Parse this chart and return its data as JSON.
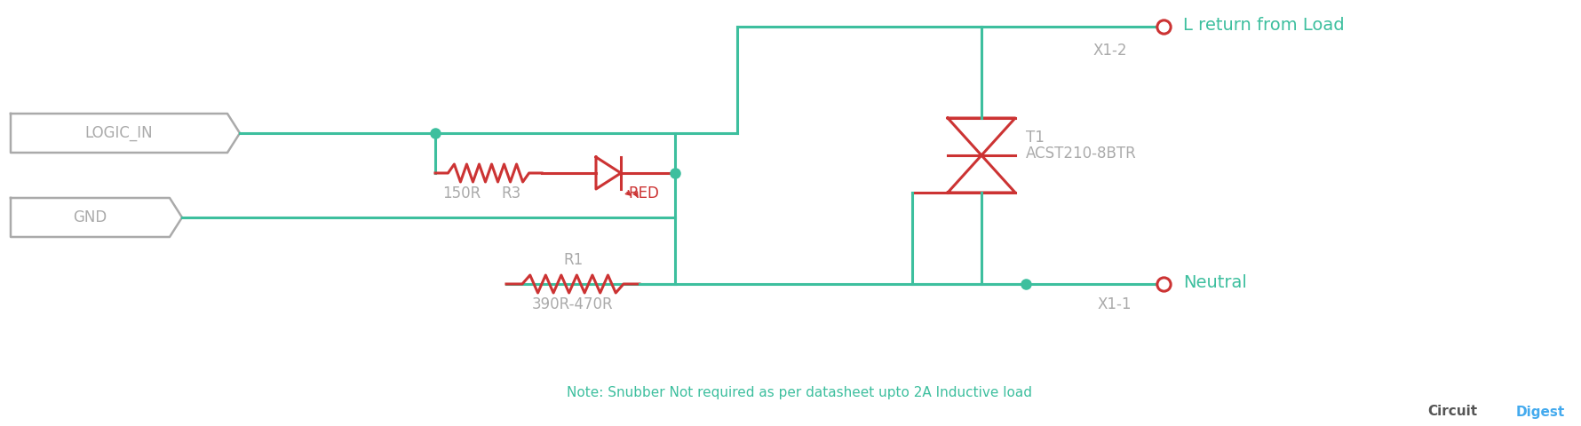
{
  "bg_color": "#ffffff",
  "wire_color": "#3dbf9e",
  "component_color": "#cc3333",
  "label_color": "#aaaaaa",
  "note_color": "#3dbf9e",
  "cd_gray": "#555555",
  "cd_blue": "#44aaee",
  "logic_in_label": "LOGIC_IN",
  "gnd_label": "GND",
  "r3_value": "150R",
  "r3_label": "R3",
  "led_label": "RED",
  "r1_label": "R1",
  "r1_value": "390R-470R",
  "triac_label": "T1",
  "triac_name": "ACST210-8BTR",
  "x1_2_label": "X1-2",
  "x1_1_label": "X1-1",
  "l_return_label": "L return from Load",
  "neutral_label": "Neutral",
  "note_text": "Note: Snubber Not required as per datasheet upto 2A Inductive load",
  "cd_text1": "Circuit",
  "cd_text2": "Digest"
}
